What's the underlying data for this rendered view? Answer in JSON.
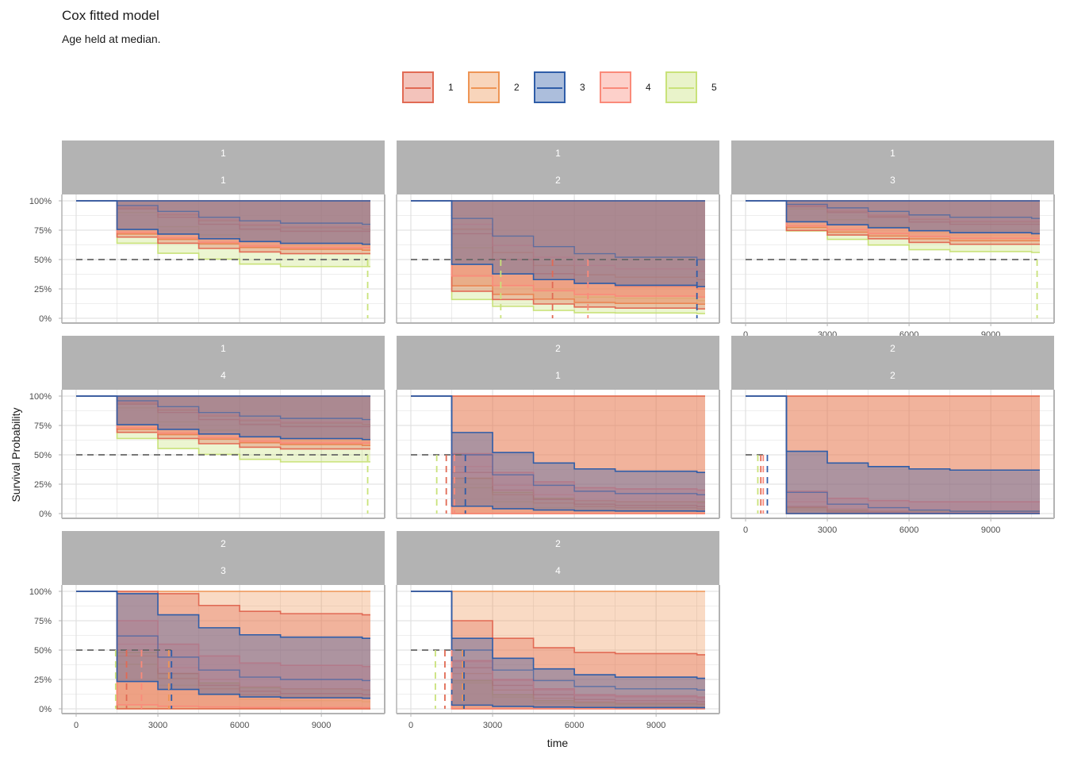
{
  "title": "Cox fitted model",
  "subtitle": "Age held at median.",
  "chart_data": {
    "type": "line",
    "subtype": "survival-step-with-confidence-bands",
    "title": "Cox fitted model",
    "subtitle": "Age held at median.",
    "xlabel": "time",
    "ylabel": "Survival Probability",
    "xlim": [
      0,
      10800
    ],
    "ylim": [
      0,
      1
    ],
    "x_ticks": [
      0,
      3000,
      6000,
      9000
    ],
    "x_tick_labels": [
      "0",
      "3000",
      "6000",
      "9000"
    ],
    "y_ticks": [
      0,
      0.25,
      0.5,
      0.75,
      1
    ],
    "y_tick_labels": [
      "0%",
      "25%",
      "50%",
      "75%",
      "100%"
    ],
    "grid": true,
    "reference_line": {
      "y": 0.5,
      "style": "dashed",
      "color": "#666666"
    },
    "legend": {
      "position": "top",
      "entries": [
        {
          "label": "1",
          "color": "#E16A54"
        },
        {
          "label": "2",
          "color": "#EE9555"
        },
        {
          "label": "3",
          "color": "#2F5DA8"
        },
        {
          "label": "4",
          "color": "#FA8A7A"
        },
        {
          "label": "5",
          "color": "#C9E27A"
        }
      ]
    },
    "panels": [
      {
        "strip": [
          "1",
          "1"
        ],
        "x_axis": false,
        "y_axis": true,
        "curves": {
          "1": [
            1.0,
            0.93,
            0.86,
            0.8,
            0.76,
            0.74,
            0.74,
            0.74
          ],
          "2": [
            1.0,
            0.94,
            0.88,
            0.83,
            0.79,
            0.77,
            0.77,
            0.76
          ],
          "3": [
            1.0,
            0.96,
            0.91,
            0.86,
            0.83,
            0.81,
            0.81,
            0.8
          ],
          "4": [
            1.0,
            0.95,
            0.89,
            0.84,
            0.8,
            0.78,
            0.78,
            0.78
          ],
          "5": [
            1.0,
            0.9,
            0.78,
            0.71,
            0.65,
            0.62,
            0.62,
            0.62
          ]
        },
        "lower": {
          "1": 0.55,
          "2": 0.58,
          "3": 0.63,
          "4": 0.6,
          "5": 0.44
        },
        "median_lines": [
          {
            "group": "5",
            "x": 10700
          }
        ]
      },
      {
        "strip": [
          "1",
          "2"
        ],
        "x_axis": false,
        "y_axis": false,
        "curves": {
          "1": [
            1.0,
            0.72,
            0.5,
            0.38,
            0.3,
            0.27,
            0.27,
            0.25
          ],
          "2": [
            1.0,
            0.76,
            0.56,
            0.45,
            0.37,
            0.35,
            0.35,
            0.33
          ],
          "3": [
            1.0,
            0.85,
            0.7,
            0.61,
            0.55,
            0.52,
            0.52,
            0.5
          ],
          "4": [
            1.0,
            0.8,
            0.62,
            0.52,
            0.45,
            0.42,
            0.42,
            0.4
          ],
          "5": [
            1.0,
            0.6,
            0.38,
            0.25,
            0.18,
            0.17,
            0.17,
            0.15
          ]
        },
        "lower": {
          "1": 0.08,
          "2": 0.12,
          "3": 0.27,
          "4": 0.18,
          "5": 0.04
        },
        "median_lines": [
          {
            "group": "5",
            "x": 3300
          },
          {
            "group": "1",
            "x": 5200
          },
          {
            "group": "4",
            "x": 6500
          },
          {
            "group": "3",
            "x": 10500
          }
        ]
      },
      {
        "strip": [
          "1",
          "3"
        ],
        "x_axis": true,
        "y_axis": false,
        "curves": {
          "1": [
            1.0,
            0.95,
            0.9,
            0.86,
            0.82,
            0.8,
            0.8,
            0.8
          ],
          "2": [
            1.0,
            0.96,
            0.91,
            0.87,
            0.84,
            0.82,
            0.82,
            0.82
          ],
          "3": [
            1.0,
            0.97,
            0.94,
            0.91,
            0.88,
            0.86,
            0.86,
            0.85
          ],
          "4": [
            1.0,
            0.96,
            0.92,
            0.88,
            0.85,
            0.83,
            0.83,
            0.83
          ],
          "5": [
            1.0,
            0.93,
            0.84,
            0.78,
            0.73,
            0.71,
            0.71,
            0.7
          ]
        },
        "lower": {
          "1": 0.63,
          "2": 0.66,
          "3": 0.72,
          "4": 0.68,
          "5": 0.56
        },
        "median_lines": [
          {
            "group": "5",
            "x": 10700
          }
        ]
      },
      {
        "strip": [
          "1",
          "4"
        ],
        "x_axis": false,
        "y_axis": true,
        "curves": {
          "1": [
            1.0,
            0.93,
            0.86,
            0.8,
            0.76,
            0.74,
            0.74,
            0.74
          ],
          "2": [
            1.0,
            0.94,
            0.88,
            0.83,
            0.79,
            0.77,
            0.77,
            0.76
          ],
          "3": [
            1.0,
            0.96,
            0.91,
            0.86,
            0.83,
            0.81,
            0.81,
            0.8
          ],
          "4": [
            1.0,
            0.95,
            0.89,
            0.84,
            0.8,
            0.78,
            0.78,
            0.78
          ],
          "5": [
            1.0,
            0.9,
            0.78,
            0.71,
            0.65,
            0.62,
            0.62,
            0.62
          ]
        },
        "lower": {
          "1": 0.55,
          "2": 0.58,
          "3": 0.63,
          "4": 0.6,
          "5": 0.44
        },
        "median_lines": [
          {
            "group": "5",
            "x": 10700
          }
        ]
      },
      {
        "strip": [
          "2",
          "1"
        ],
        "x_axis": false,
        "y_axis": false,
        "curves": {
          "1": [
            1.0,
            0.35,
            0.2,
            0.12,
            0.08,
            0.07,
            0.07,
            0.06
          ],
          "2": [
            1.0,
            0.3,
            0.16,
            0.09,
            0.06,
            0.05,
            0.05,
            0.04
          ],
          "3": [
            1.0,
            0.5,
            0.33,
            0.24,
            0.19,
            0.17,
            0.17,
            0.16
          ],
          "4": [
            1.0,
            0.4,
            0.24,
            0.16,
            0.11,
            0.1,
            0.1,
            0.09
          ],
          "5": [
            1.0,
            0.22,
            0.1,
            0.05,
            0.03,
            0.02,
            0.02,
            0.02
          ]
        },
        "lower": {
          "1": 0.0,
          "2": 0.0,
          "3": 0.02,
          "4": 0.0,
          "5": 0.0
        },
        "upper": {
          "1": 1.0,
          "2": 1.0,
          "3": 0.35,
          "4": 0.2,
          "5": 0.1
        },
        "median_lines": [
          {
            "group": "5",
            "x": 950
          },
          {
            "group": "1",
            "x": 1300
          },
          {
            "group": "4",
            "x": 1600
          },
          {
            "group": "3",
            "x": 2000
          }
        ]
      },
      {
        "strip": [
          "2",
          "2"
        ],
        "x_axis": true,
        "y_axis": false,
        "curves": {
          "1": [
            1.0,
            0.06,
            0.02,
            0.01,
            0.0,
            0.0,
            0.0,
            0.0
          ],
          "2": [
            1.0,
            0.05,
            0.01,
            0.0,
            0.0,
            0.0,
            0.0,
            0.0
          ],
          "3": [
            1.0,
            0.18,
            0.08,
            0.05,
            0.03,
            0.02,
            0.02,
            0.02
          ],
          "4": [
            1.0,
            0.1,
            0.04,
            0.02,
            0.01,
            0.01,
            0.01,
            0.01
          ],
          "5": [
            1.0,
            0.03,
            0.01,
            0.0,
            0.0,
            0.0,
            0.0,
            0.0
          ]
        },
        "upper": {
          "1": 1.0,
          "2": 1.0,
          "3": 0.37,
          "4": 0.1,
          "5": 0.02
        },
        "median_lines": [
          {
            "group": "5",
            "x": 450
          },
          {
            "group": "1",
            "x": 560
          },
          {
            "group": "4",
            "x": 650
          },
          {
            "group": "3",
            "x": 800
          }
        ]
      },
      {
        "strip": [
          "2",
          "3"
        ],
        "x_axis": true,
        "y_axis": true,
        "curves": {
          "1": [
            1.0,
            0.5,
            0.3,
            0.2,
            0.15,
            0.13,
            0.13,
            0.12
          ],
          "2": [
            1.0,
            0.45,
            0.26,
            0.17,
            0.12,
            0.1,
            0.1,
            0.09
          ],
          "3": [
            1.0,
            0.62,
            0.44,
            0.33,
            0.27,
            0.25,
            0.25,
            0.24
          ],
          "4": [
            1.0,
            0.55,
            0.35,
            0.25,
            0.19,
            0.17,
            0.17,
            0.16
          ],
          "5": [
            1.0,
            0.38,
            0.2,
            0.12,
            0.08,
            0.07,
            0.07,
            0.06
          ]
        },
        "upper": {
          "1": 0.8,
          "3": 0.6,
          "4": 0.36,
          "5": 0.16
        },
        "median_lines": [
          {
            "group": "5",
            "x": 1450
          },
          {
            "group": "1",
            "x": 1850
          },
          {
            "group": "4",
            "x": 2400
          },
          {
            "group": "2",
            "x": 3400
          },
          {
            "group": "3",
            "x": 3500
          }
        ]
      },
      {
        "strip": [
          "2",
          "4"
        ],
        "x_axis": true,
        "y_axis": false,
        "curves": {
          "1": [
            1.0,
            0.35,
            0.2,
            0.12,
            0.08,
            0.07,
            0.07,
            0.06
          ],
          "2": [
            1.0,
            0.3,
            0.16,
            0.09,
            0.06,
            0.05,
            0.05,
            0.04
          ],
          "3": [
            1.0,
            0.5,
            0.33,
            0.24,
            0.19,
            0.17,
            0.17,
            0.16
          ],
          "4": [
            1.0,
            0.4,
            0.24,
            0.16,
            0.11,
            0.1,
            0.1,
            0.09
          ],
          "5": [
            1.0,
            0.22,
            0.1,
            0.05,
            0.03,
            0.02,
            0.02,
            0.02
          ]
        },
        "upper": {
          "1": 0.46,
          "3": 0.26,
          "4": 0.1,
          "5": 0.04
        },
        "median_lines": [
          {
            "group": "5",
            "x": 900
          },
          {
            "group": "1",
            "x": 1250
          },
          {
            "group": "4",
            "x": 1500
          },
          {
            "group": "2",
            "x": 1900
          },
          {
            "group": "3",
            "x": 1950
          }
        ]
      }
    ],
    "curve_time_points": [
      0,
      1500,
      3000,
      4500,
      6000,
      7500,
      9000,
      10500
    ]
  }
}
